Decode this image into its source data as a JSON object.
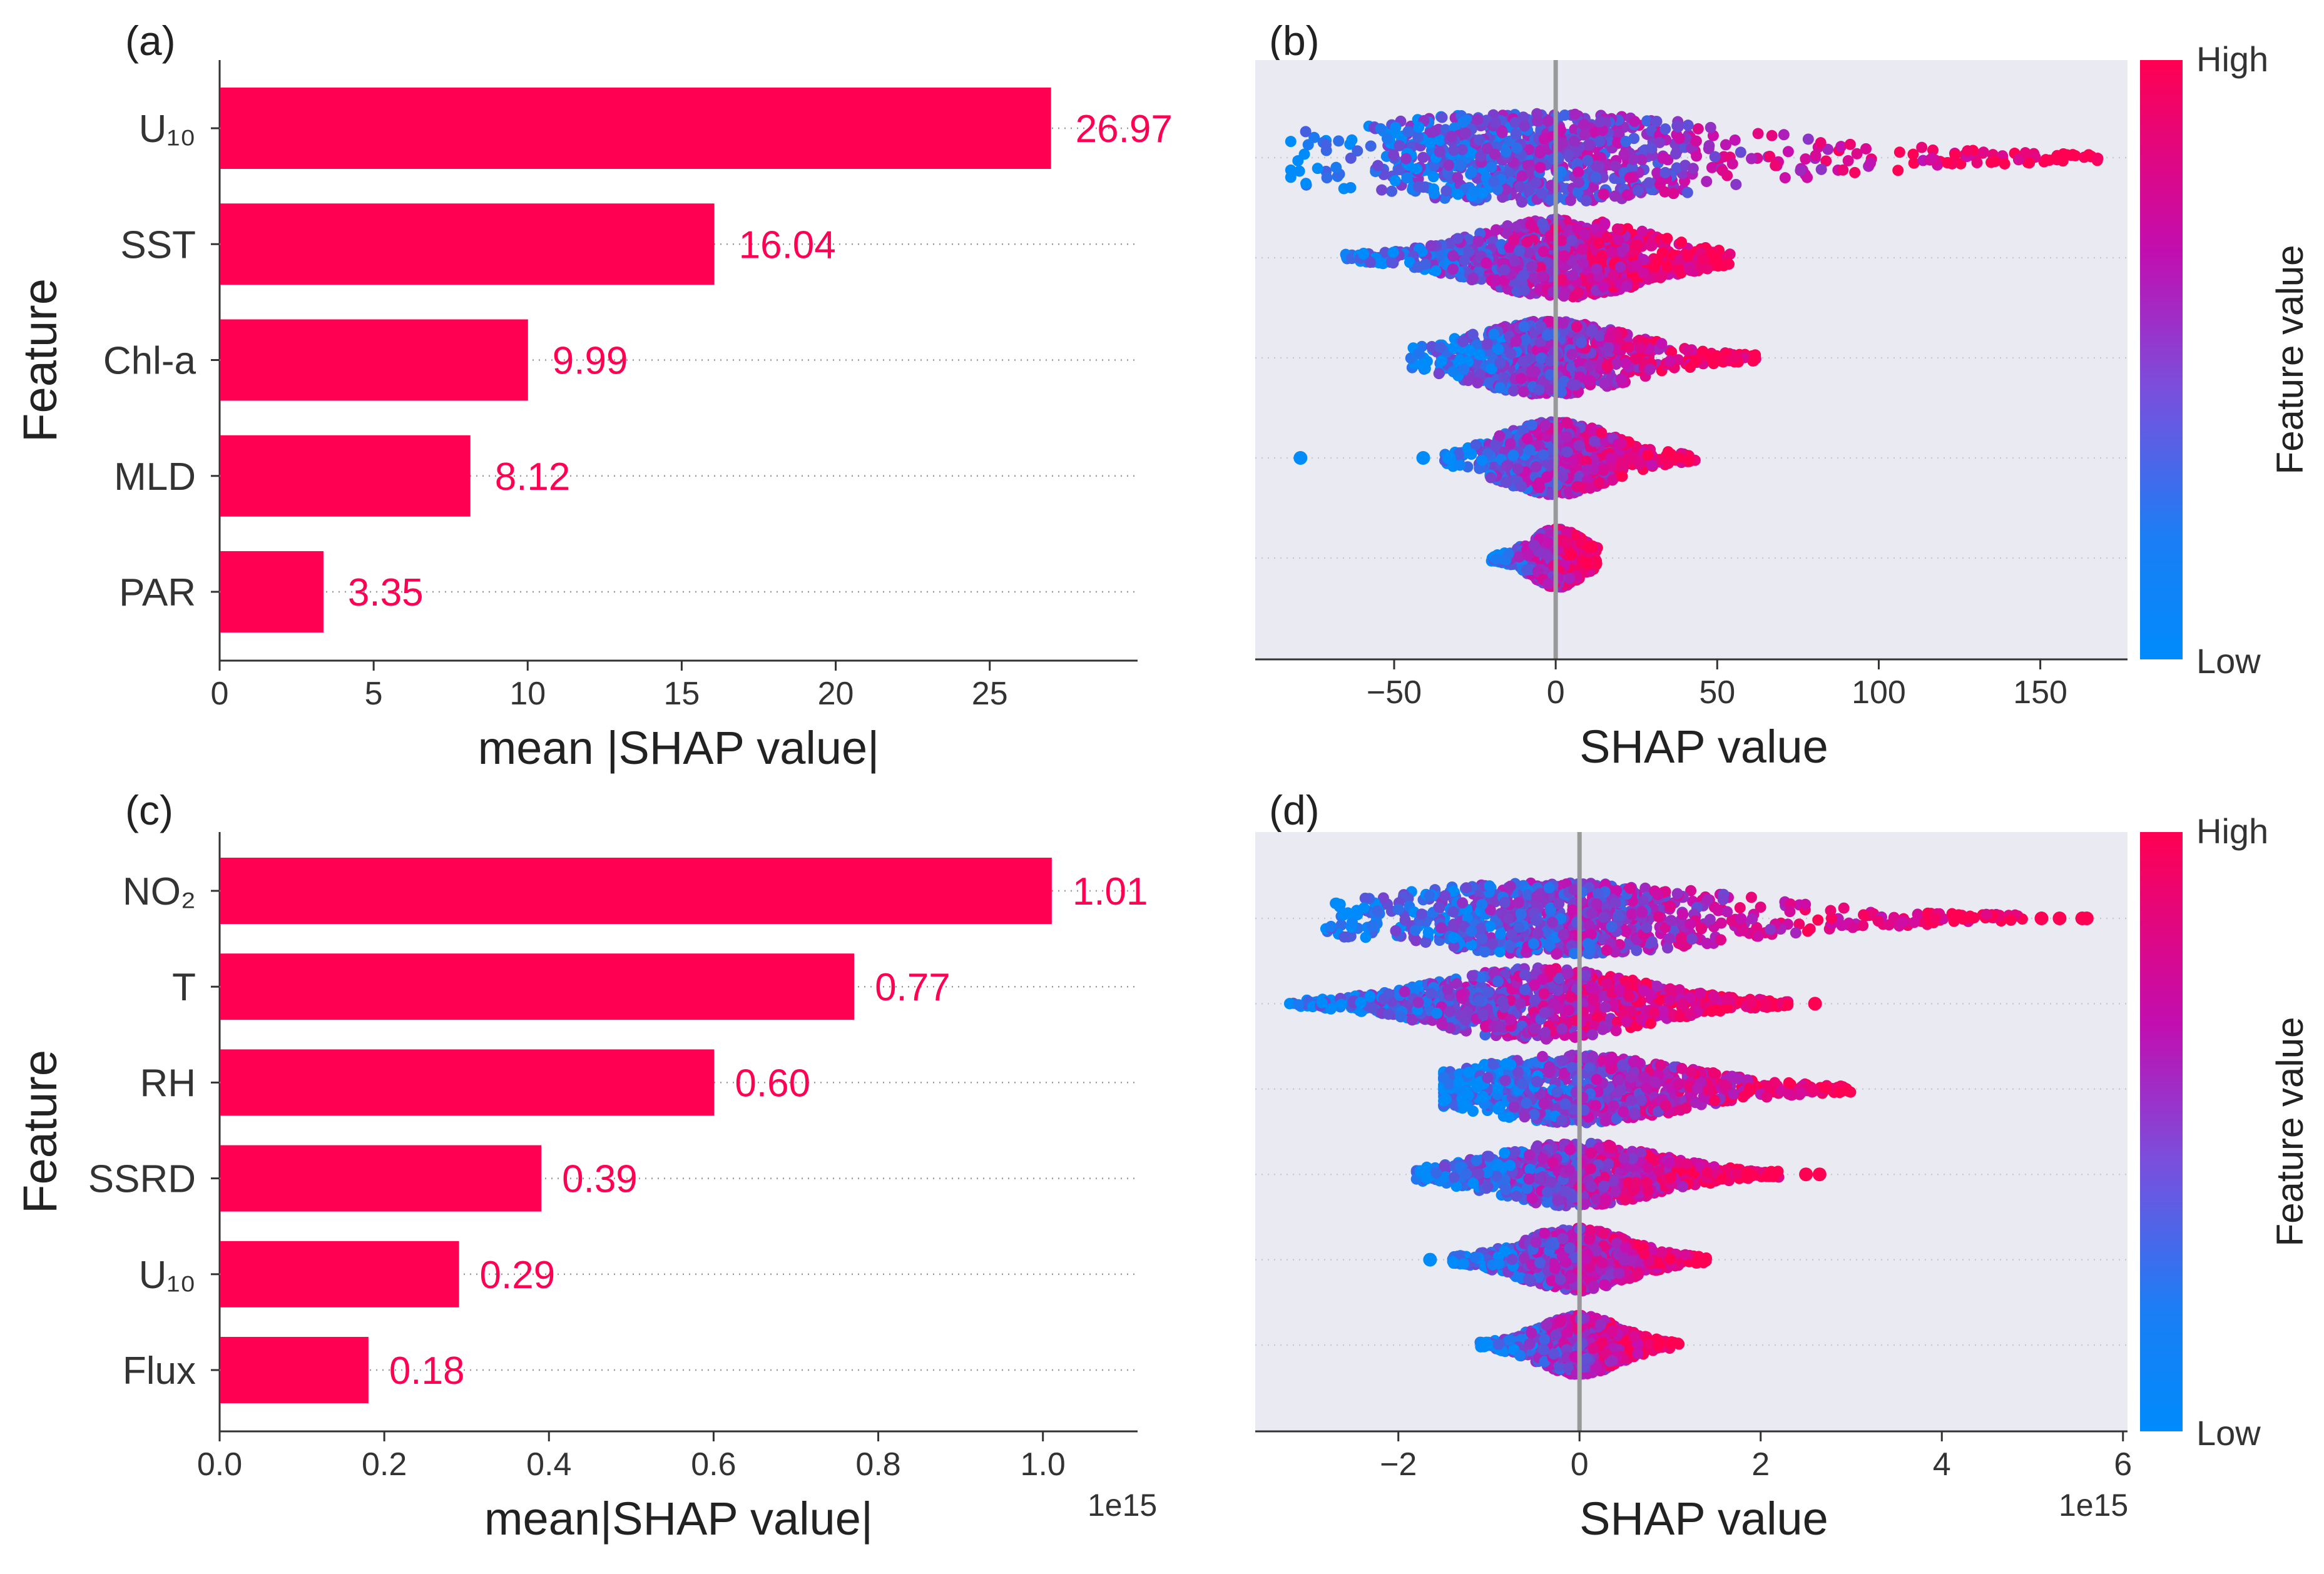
{
  "colors": {
    "bar": "#ff0052",
    "high": "#ff0052",
    "low": "#008bfb",
    "label_text": "#ff0052",
    "axis_text": "#333333",
    "swarm_bg": "#eaeaf2",
    "zero_line": "#999999"
  },
  "chart_data": [
    {
      "panel": "(a)",
      "type": "bar",
      "orientation": "horizontal",
      "categories": [
        "U₁₀",
        "SST",
        "Chl-a",
        "MLD",
        "PAR"
      ],
      "values": [
        26.97,
        16.04,
        9.99,
        8.12,
        3.35
      ],
      "value_labels": [
        "26.97",
        "16.04",
        "9.99",
        "8.12",
        "3.35"
      ],
      "xlabel": "mean |SHAP value|",
      "ylabel": "Feature",
      "xlim": [
        0,
        29.8
      ],
      "xticks": [
        0,
        5,
        10,
        15,
        20,
        25
      ],
      "xtick_labels": [
        "0",
        "5",
        "10",
        "15",
        "20",
        "25"
      ],
      "offset_text": ""
    },
    {
      "panel": "(b)",
      "type": "scatter",
      "subtype": "beeswarm",
      "features": [
        "U₁₀",
        "SST",
        "Chl-a",
        "MLD",
        "PAR"
      ],
      "xlabel": "SHAP value",
      "xlim": [
        -93,
        177
      ],
      "xticks": [
        -50,
        0,
        50,
        100,
        150
      ],
      "xtick_labels": [
        "−50",
        "0",
        "50",
        "100",
        "150"
      ],
      "offset_text": "",
      "colorbar": {
        "label": "Feature value",
        "high": "High",
        "low": "Low"
      },
      "swarms": [
        {
          "min": -82,
          "max": 168,
          "core": [
            -40,
            25
          ],
          "spread": 0.85
        },
        {
          "min": -65,
          "max": 55,
          "core": [
            -20,
            25
          ],
          "spread": 0.75
        },
        {
          "min": -45,
          "max": 62,
          "core": [
            -20,
            15
          ],
          "spread": 0.7
        },
        {
          "min": -35,
          "max": 44,
          "core": [
            -12,
            12
          ],
          "spread": 0.7,
          "outliers": [
            -79,
            -41,
            -33
          ]
        },
        {
          "min": -20,
          "max": 13,
          "core": [
            -4,
            5
          ],
          "spread": 0.55
        }
      ]
    },
    {
      "panel": "(c)",
      "type": "bar",
      "orientation": "horizontal",
      "categories": [
        "NO₂",
        "T",
        "RH",
        "SSRD",
        "U₁₀",
        "Flux"
      ],
      "values": [
        1.01,
        0.77,
        0.6,
        0.39,
        0.29,
        0.18
      ],
      "value_labels": [
        "1.01",
        "0.77",
        "0.60",
        "0.39",
        "0.29",
        "0.18"
      ],
      "xlabel": "mean|SHAP value|",
      "ylabel": "Feature",
      "xlim": [
        0,
        1.115
      ],
      "xticks": [
        0.0,
        0.2,
        0.4,
        0.6,
        0.8,
        1.0
      ],
      "xtick_labels": [
        "0.0",
        "0.2",
        "0.4",
        "0.6",
        "0.8",
        "1.0"
      ],
      "offset_text": "1e15"
    },
    {
      "panel": "(d)",
      "type": "scatter",
      "subtype": "beeswarm",
      "features": [
        "NO₂",
        "T",
        "RH",
        "SSRD",
        "U₁₀",
        "Flux"
      ],
      "xlabel": "SHAP value",
      "xlim": [
        -3.58,
        6.05
      ],
      "xticks": [
        -2,
        0,
        2,
        4,
        6
      ],
      "xtick_labels": [
        "−2",
        "0",
        "2",
        "4",
        "6"
      ],
      "offset_text": "1e15",
      "colorbar": {
        "label": "Feature value",
        "high": "High",
        "low": "Low"
      },
      "swarms": [
        {
          "min": -2.8,
          "max": 4.9,
          "core": [
            -1.4,
            0.8
          ],
          "spread": 0.8,
          "outliers": [
            5.1,
            5.3,
            5.55,
            5.6
          ]
        },
        {
          "min": -3.2,
          "max": 2.3,
          "core": [
            -1.8,
            0.9
          ],
          "spread": 0.8,
          "outliers": [
            2.6
          ]
        },
        {
          "min": -1.5,
          "max": 3.0,
          "core": [
            -1.0,
            0.9
          ],
          "spread": 0.75
        },
        {
          "min": -1.8,
          "max": 2.2,
          "core": [
            -0.9,
            0.8
          ],
          "spread": 0.7,
          "outliers": [
            2.5,
            2.65
          ]
        },
        {
          "min": -1.4,
          "max": 1.4,
          "core": [
            -0.7,
            0.6
          ],
          "spread": 0.7,
          "outliers": [
            -1.65
          ]
        },
        {
          "min": -1.1,
          "max": 1.1,
          "core": [
            -0.4,
            0.4
          ],
          "spread": 0.65
        }
      ]
    }
  ]
}
